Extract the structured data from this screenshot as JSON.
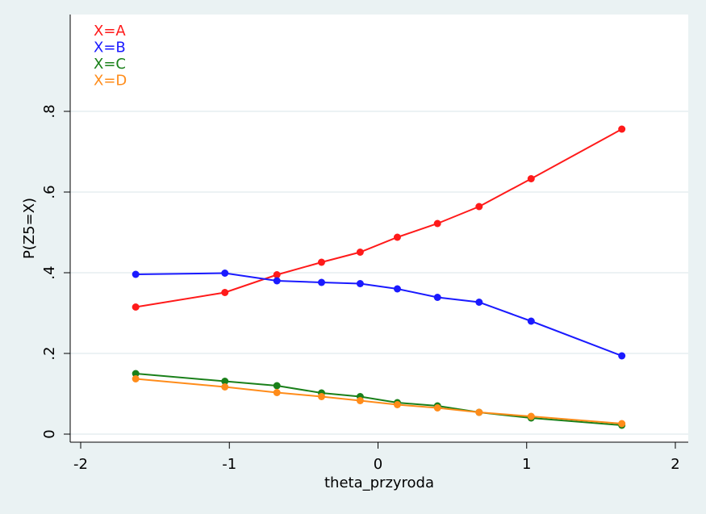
{
  "chart_data": {
    "type": "line",
    "xlabel": "theta_przyroda",
    "ylabel": "P(Z5=X)",
    "xlim": [
      -2,
      2
    ],
    "ylim": [
      0,
      1
    ],
    "x_ticks": [
      -2,
      -1,
      0,
      1,
      2
    ],
    "x_tick_labels": [
      "-2",
      "-1",
      "0",
      "1",
      "2"
    ],
    "y_ticks": [
      0,
      0.2,
      0.4,
      0.6,
      0.8
    ],
    "y_tick_labels": [
      "0",
      ".2",
      ".4",
      ".6",
      ".8"
    ],
    "grid": true,
    "legend_position": "top-left",
    "x": [
      -1.63,
      -1.03,
      -0.68,
      -0.38,
      -0.12,
      0.13,
      0.4,
      0.68,
      1.03,
      1.64
    ],
    "series": [
      {
        "name": "X=A",
        "color": "#ff1a1a",
        "values": [
          0.315,
          0.351,
          0.395,
          0.426,
          0.451,
          0.488,
          0.522,
          0.564,
          0.633,
          0.756
        ]
      },
      {
        "name": "X=B",
        "color": "#1a1aff",
        "values": [
          0.396,
          0.399,
          0.38,
          0.376,
          0.373,
          0.36,
          0.339,
          0.327,
          0.28,
          0.194
        ]
      },
      {
        "name": "X=C",
        "color": "#1a801a",
        "values": [
          0.15,
          0.131,
          0.12,
          0.102,
          0.093,
          0.078,
          0.07,
          0.054,
          0.04,
          0.022
        ]
      },
      {
        "name": "X=D",
        "color": "#ff8c1a",
        "values": [
          0.137,
          0.117,
          0.103,
          0.093,
          0.083,
          0.073,
          0.065,
          0.054,
          0.044,
          0.026
        ]
      }
    ]
  }
}
